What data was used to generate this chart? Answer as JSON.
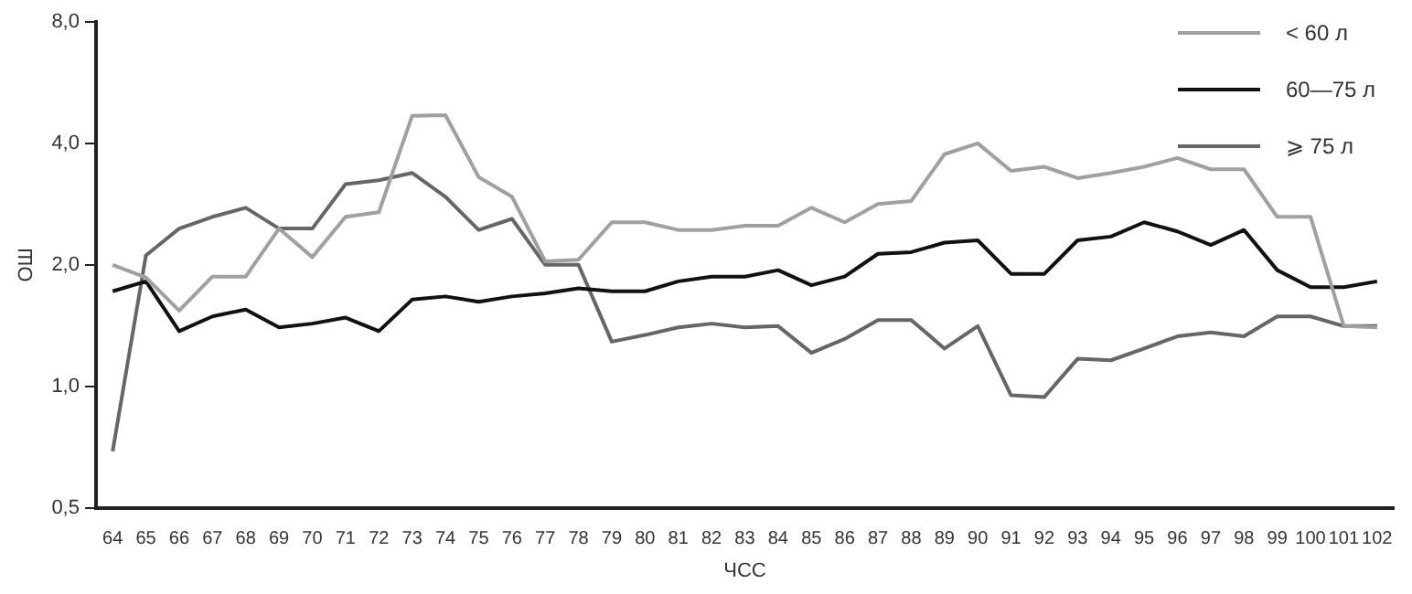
{
  "chart_data": {
    "type": "line",
    "xlabel": "ЧСС",
    "ylabel": "ОШ",
    "log": "y",
    "legend": "top right",
    "grid": false,
    "marker": "none",
    "line_style": "solid",
    "categories": [
      "64",
      "65",
      "66",
      "67",
      "68",
      "69",
      "70",
      "71",
      "72",
      "73",
      "74",
      "75",
      "76",
      "77",
      "78",
      "79",
      "80",
      "81",
      "82",
      "83",
      "84",
      "85",
      "86",
      "87",
      "88",
      "89",
      "90",
      "91",
      "92",
      "93",
      "94",
      "95",
      "96",
      "97",
      "98",
      "99",
      "100",
      "101",
      "102"
    ],
    "ylim": [
      0.5,
      8
    ],
    "yticks": [
      {
        "value": 0.5,
        "label": "0,5"
      },
      {
        "value": 1,
        "label": "1,0"
      },
      {
        "value": 2,
        "label": "2,0"
      },
      {
        "value": 4,
        "label": "4,0"
      },
      {
        "value": 8,
        "label": "8,0"
      }
    ],
    "series": [
      {
        "name": "< 60 л",
        "color": "#a0a0a0",
        "values": [
          2.0,
          1.86,
          1.54,
          1.87,
          1.87,
          2.46,
          2.09,
          2.63,
          2.7,
          4.68,
          4.7,
          3.3,
          2.95,
          2.04,
          2.06,
          2.55,
          2.55,
          2.44,
          2.44,
          2.5,
          2.5,
          2.77,
          2.55,
          2.83,
          2.88,
          3.76,
          4.0,
          3.42,
          3.5,
          3.28,
          3.38,
          3.5,
          3.68,
          3.45,
          3.45,
          2.63,
          2.63,
          1.41,
          1.4
        ]
      },
      {
        "name": "60—75 л",
        "color": "#111111",
        "values": [
          1.72,
          1.82,
          1.37,
          1.49,
          1.55,
          1.4,
          1.43,
          1.48,
          1.37,
          1.64,
          1.67,
          1.62,
          1.67,
          1.7,
          1.75,
          1.72,
          1.72,
          1.82,
          1.87,
          1.87,
          1.94,
          1.78,
          1.87,
          2.13,
          2.15,
          2.27,
          2.3,
          1.9,
          1.9,
          2.3,
          2.35,
          2.55,
          2.42,
          2.24,
          2.44,
          1.94,
          1.76,
          1.76,
          1.82
        ]
      },
      {
        "name": "⩾ 75 л",
        "color": "#666666",
        "values": [
          0.69,
          2.11,
          2.46,
          2.63,
          2.77,
          2.46,
          2.46,
          3.17,
          3.24,
          3.38,
          2.95,
          2.44,
          2.6,
          2.0,
          2.0,
          1.29,
          1.34,
          1.4,
          1.43,
          1.4,
          1.41,
          1.21,
          1.31,
          1.46,
          1.46,
          1.24,
          1.41,
          0.95,
          0.94,
          1.17,
          1.16,
          1.24,
          1.33,
          1.36,
          1.33,
          1.49,
          1.49,
          1.41,
          1.41
        ]
      }
    ]
  }
}
